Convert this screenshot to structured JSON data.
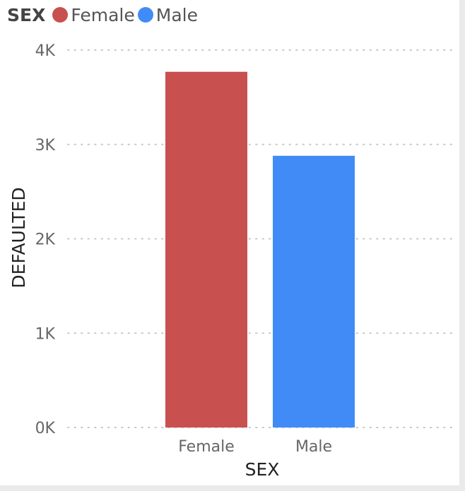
{
  "chart_data": {
    "type": "bar",
    "title": "",
    "legend": {
      "title": "SEX",
      "placement": "top-left",
      "entries": [
        {
          "label": "Female",
          "color": "#c8504f"
        },
        {
          "label": "Male",
          "color": "#418bf7"
        }
      ]
    },
    "categories": [
      "Female",
      "Male"
    ],
    "values": [
      3770,
      2880
    ],
    "colors": [
      "#c8504f",
      "#418bf7"
    ],
    "xlabel": "SEX",
    "ylabel": "DEFAULTED",
    "ylim": [
      0,
      4000
    ],
    "yticks": [
      {
        "value": 0,
        "label": "0K"
      },
      {
        "value": 1000,
        "label": "1K"
      },
      {
        "value": 2000,
        "label": "2K"
      },
      {
        "value": 3000,
        "label": "3K"
      },
      {
        "value": 4000,
        "label": "4K"
      }
    ],
    "grid": true
  }
}
